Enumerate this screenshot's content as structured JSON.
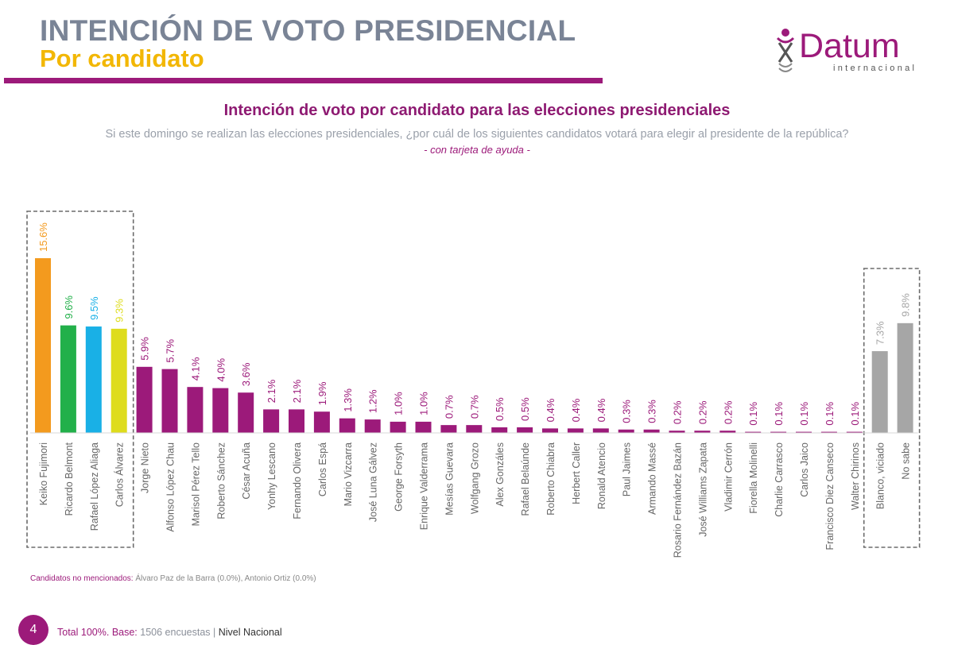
{
  "header": {
    "title": "INTENCIÓN DE VOTO PRESIDENCIAL",
    "subtitle": "Por candidato",
    "logo_word": "Datum",
    "logo_sub": "internacional"
  },
  "colors": {
    "accent": "#9c1a7a",
    "title_gray": "#7a8496",
    "yellow": "#f2b705",
    "bar_default": "#9c1a7a",
    "bar_gray": "#a6a6a6"
  },
  "chart_data": {
    "type": "bar",
    "title": "Intención de voto por candidato para las elecciones presidenciales",
    "question": "Si este domingo se realizan las elecciones presidenciales, ¿por cuál de los siguientes candidatos votará para elegir al presidente de la república?",
    "note": "- con tarjeta de ayuda -",
    "ylim": [
      0,
      20
    ],
    "categories": [
      "Keiko Fujimori",
      "Ricardo Belmont",
      "Rafael López Aliaga",
      "Carlos Álvarez",
      "Jorge Nieto",
      "Alfonso López Chau",
      "Marisol Pérez Tello",
      "Roberto Sánchez",
      "César Acuña",
      "Yonhy Lescano",
      "Fernando Olivera",
      "Carlos Espá",
      "Mario Vizcarra",
      "José Luna Gálvez",
      "George Forsyth",
      "Enrique Valderrama",
      "Mesías Guevara",
      "Wolfgang Grozo",
      "Alex Gonzáles",
      "Rafael Belaúnde",
      "Roberto Chiabra",
      "Herbert Caller",
      "Ronald Atencio",
      "Paul Jaimes",
      "Armando Massé",
      "Rosario Fernández Bazán",
      "José Williams Zapata",
      "Vladimir Cerrón",
      "Fiorella Molinelli",
      "Charlie Carrasco",
      "Carlos Jaico",
      "Francisco Diez Canseco",
      "Walter Chirinos",
      "Blanco, viciado",
      "No sabe"
    ],
    "values": [
      15.6,
      9.6,
      9.5,
      9.3,
      5.9,
      5.7,
      4.1,
      4.0,
      3.6,
      2.1,
      2.1,
      1.9,
      1.3,
      1.2,
      1.0,
      1.0,
      0.7,
      0.7,
      0.5,
      0.5,
      0.4,
      0.4,
      0.4,
      0.3,
      0.3,
      0.2,
      0.2,
      0.2,
      0.1,
      0.1,
      0.1,
      0.1,
      0.1,
      7.3,
      9.8
    ],
    "labels": [
      "15.6%",
      "9.6%",
      "9.5%",
      "9.3%",
      "5.9%",
      "5.7%",
      "4.1%",
      "4.0%",
      "3.6%",
      "2.1%",
      "2.1%",
      "1.9%",
      "1.3%",
      "1.2%",
      "1.0%",
      "1.0%",
      "0.7%",
      "0.7%",
      "0.5%",
      "0.5%",
      "0.4%",
      "0.4%",
      "0.4%",
      "0.3%",
      "0.3%",
      "0.2%",
      "0.2%",
      "0.2%",
      "0.1%",
      "0.1%",
      "0.1%",
      "0.1%",
      "0.1%",
      "7.3%",
      "9.8%"
    ],
    "bar_colors": {
      "0": "#f39a1e",
      "1": "#22b04a",
      "2": "#19b0e6",
      "3": "#dedc1c",
      "33": "#a6a6a6",
      "34": "#a6a6a6"
    },
    "highlight_groups": [
      [
        0,
        3
      ],
      [
        33,
        34
      ]
    ]
  },
  "footnote": {
    "label": "Candidatos no mencionados:",
    "text": "Álvaro Paz de la Barra (0.0%), Antonio Ortiz (0.0%)"
  },
  "footer": {
    "page": "4",
    "total": "Total 100%.",
    "base_label": "Base:",
    "base_value": "1506 encuestas",
    "separator": "|",
    "scope": "Nivel Nacional"
  }
}
